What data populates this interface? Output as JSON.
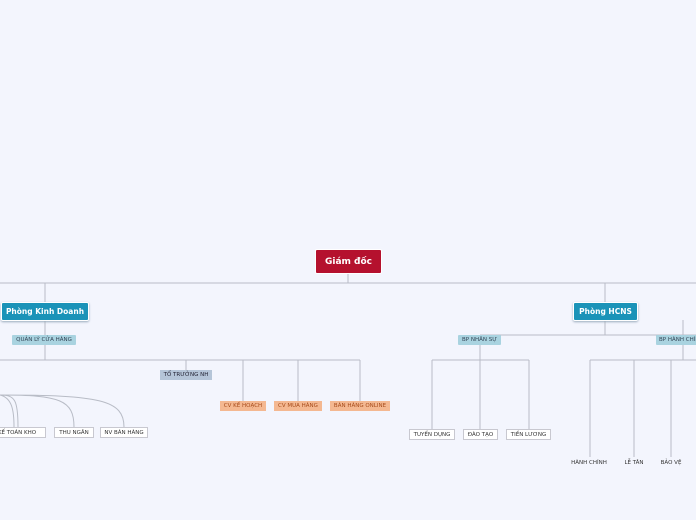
{
  "root": {
    "label": "Giám đốc"
  },
  "departments": [
    {
      "label": "Phòng Kinh Doanh",
      "groups": [
        {
          "label": "QUẢN LÝ CỬA HÀNG",
          "children": [
            {
              "label": "KẾ TOÁN KHO"
            },
            {
              "label": "THU NGÂN"
            },
            {
              "label": "NV BÁN HÀNG"
            },
            {
              "label": "TỔ TRƯỞNG NH"
            },
            {
              "label": "CV KẾ HOẠCH"
            },
            {
              "label": "CV MUA HÀNG"
            },
            {
              "label": "BÁN HÀNG ONLINE"
            }
          ]
        }
      ]
    },
    {
      "label": "Phòng HCNS",
      "groups": [
        {
          "label": "BP NHÂN SỰ",
          "children": [
            {
              "label": "TUYỂN DỤNG"
            },
            {
              "label": "ĐÀO TẠO"
            },
            {
              "label": "TIỀN LƯƠNG"
            }
          ]
        },
        {
          "label": "BP HÀNH CHÍNH",
          "children": [
            {
              "label": "HÀNH CHÍNH"
            },
            {
              "label": "LỄ TÂN"
            },
            {
              "label": "BẢO VỆ"
            }
          ]
        }
      ]
    }
  ]
}
